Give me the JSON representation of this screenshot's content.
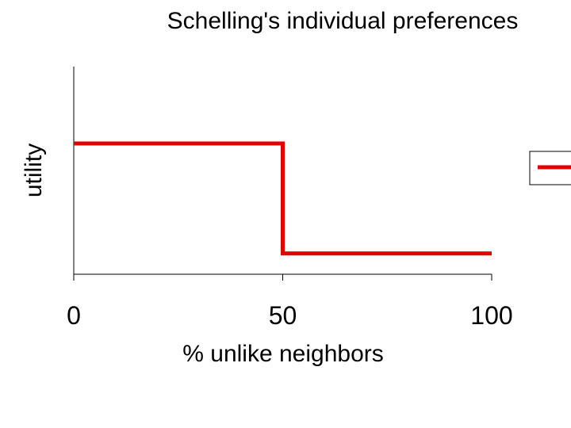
{
  "chart_data": {
    "type": "line",
    "title": "Schelling's individual preferences",
    "xlabel": "% unlike neighbors",
    "ylabel": "utility",
    "xlim": [
      0,
      100
    ],
    "ylim": [
      0,
      1
    ],
    "xticks": [
      "0",
      "50",
      "100"
    ],
    "x_tick_values": [
      0,
      50,
      100
    ],
    "grid": false,
    "legend": "right (partially cut off, no label visible)",
    "series": [
      {
        "color": "#e00000",
        "step": true,
        "points": [
          {
            "x": 0,
            "y": 0.63
          },
          {
            "x": 50,
            "y": 0.63
          },
          {
            "x": 50,
            "y": 0.1
          },
          {
            "x": 100,
            "y": 0.1
          }
        ]
      }
    ]
  }
}
